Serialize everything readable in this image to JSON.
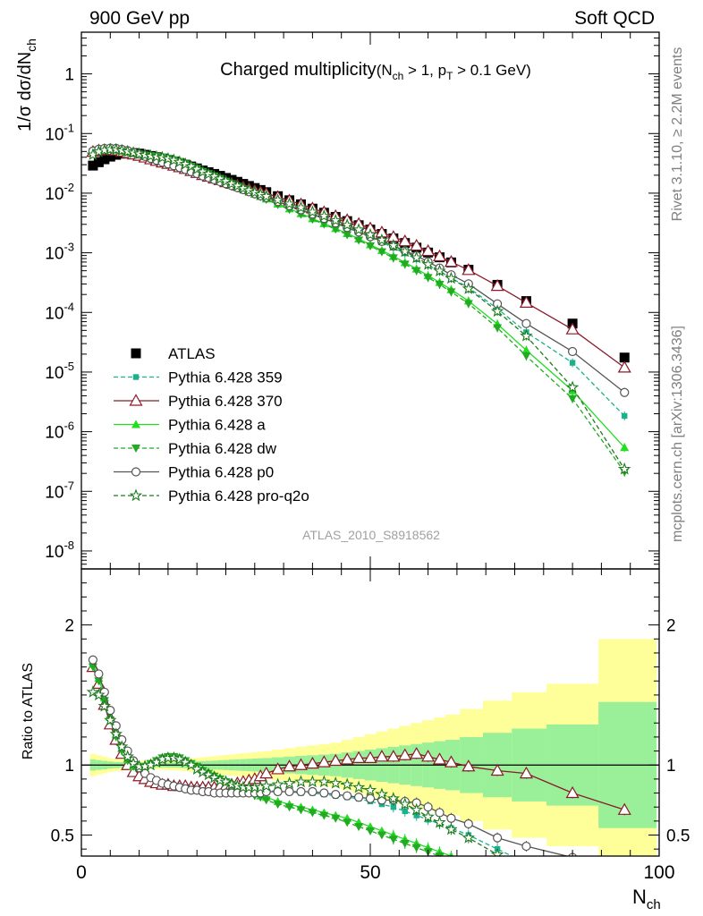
{
  "header": {
    "energy_label": "900 GeV pp",
    "category_label": "Soft QCD",
    "analysis_id": "ATLAS_2010_S8918562",
    "side_rivet": "Rivet 3.1.10, ≥ 2.2M events",
    "side_site": "mcplots.cern.ch [arXiv:1306.3436]"
  },
  "main_title": {
    "main": "Charged multiplicity",
    "cut_pre": "(N",
    "cut_sub1": "ch",
    "cut_mid": " > 1, p",
    "cut_sub2": "T",
    "cut_post": " > 0.1 GeV)"
  },
  "axes": {
    "ylabel_top": "1/σ dσ/dN",
    "ylabel_top_sub": "ch",
    "ylabel_bottom": "Ratio to ATLAS",
    "xlabel": "N",
    "xlabel_sub": "ch"
  },
  "chart_data": [
    {
      "type": "line",
      "name": "distribution",
      "yscale": "log",
      "xlim": [
        0,
        100
      ],
      "ylim": [
        5e-09,
        5
      ],
      "xticks": [
        "0",
        "50",
        "100"
      ],
      "yticks": [
        {
          "base": "10",
          "exp": "-8"
        },
        {
          "base": "10",
          "exp": "-7"
        },
        {
          "base": "10",
          "exp": "-6"
        },
        {
          "base": "10",
          "exp": "-5"
        },
        {
          "base": "10",
          "exp": "-4"
        },
        {
          "base": "10",
          "exp": "-3"
        },
        {
          "base": "10",
          "exp": "-2"
        },
        {
          "base": "10",
          "exp": "-1"
        },
        {
          "base": "1",
          "exp": ""
        }
      ],
      "x": [
        2,
        3,
        4,
        5,
        6,
        7,
        8,
        9,
        10,
        11,
        12,
        13,
        14,
        15,
        16,
        17,
        18,
        19,
        20,
        21,
        22,
        23,
        24,
        25,
        26,
        27,
        28,
        29,
        30,
        31,
        32,
        34,
        36,
        38,
        40,
        42,
        44,
        46,
        48,
        50,
        52,
        54,
        56,
        58,
        60,
        62,
        64,
        67,
        72,
        77,
        85,
        94
      ],
      "legend": [
        "ATLAS",
        "Pythia 6.428 359",
        "Pythia 6.428 370",
        "Pythia 6.428 a",
        "Pythia 6.428 dw",
        "Pythia 6.428 p0",
        "Pythia 6.428 pro-q2o"
      ],
      "data": {
        "name": "ATLAS",
        "color": "#000000",
        "values": [
          0.029,
          0.033,
          0.037,
          0.041,
          0.044,
          0.046,
          0.047,
          0.047,
          0.046,
          0.044,
          0.042,
          0.04,
          0.038,
          0.036,
          0.034,
          0.032,
          0.03,
          0.028,
          0.026,
          0.024,
          0.0225,
          0.021,
          0.0195,
          0.018,
          0.0167,
          0.0155,
          0.0143,
          0.0132,
          0.0122,
          0.0113,
          0.0104,
          0.0089,
          0.0076,
          0.0065,
          0.0055,
          0.0047,
          0.004,
          0.0034,
          0.0029,
          0.00245,
          0.00207,
          0.00174,
          0.00146,
          0.00122,
          0.00101,
          0.00084,
          0.00069,
          0.00052,
          0.00029,
          0.000155,
          6.5e-05,
          1.75e-05
        ]
      },
      "series": [
        {
          "name": "Pythia 6.428 359",
          "color": "#19b28c",
          "marker": "square",
          "dash": true,
          "ratio": [
            1.72,
            1.6,
            1.45,
            1.31,
            1.2,
            1.1,
            1.02,
            0.96,
            0.92,
            0.9,
            0.88,
            0.87,
            0.86,
            0.85,
            0.85,
            0.84,
            0.84,
            0.84,
            0.84,
            0.84,
            0.84,
            0.84,
            0.84,
            0.84,
            0.83,
            0.83,
            0.83,
            0.82,
            0.82,
            0.82,
            0.82,
            0.81,
            0.81,
            0.8,
            0.8,
            0.79,
            0.78,
            0.77,
            0.76,
            0.74,
            0.72,
            0.7,
            0.67,
            0.64,
            0.61,
            0.58,
            0.55,
            0.5,
            0.4,
            0.3,
            0.22,
            0.105
          ]
        },
        {
          "name": "Pythia 6.428 370",
          "color": "#8b1a2a",
          "marker": "triangle-open",
          "dash": false,
          "ratio": [
            1.7,
            1.58,
            1.43,
            1.29,
            1.18,
            1.08,
            1.0,
            0.95,
            0.92,
            0.9,
            0.88,
            0.87,
            0.86,
            0.86,
            0.85,
            0.85,
            0.85,
            0.84,
            0.84,
            0.84,
            0.84,
            0.84,
            0.85,
            0.85,
            0.86,
            0.87,
            0.88,
            0.89,
            0.9,
            0.92,
            0.94,
            0.97,
            0.99,
            1.0,
            1.01,
            1.02,
            1.03,
            1.04,
            1.05,
            1.05,
            1.06,
            1.06,
            1.07,
            1.08,
            1.06,
            1.04,
            1.02,
            0.99,
            0.96,
            0.94,
            0.8,
            0.68
          ]
        },
        {
          "name": "Pythia 6.428 a",
          "color": "#22dd22",
          "marker": "triangle-up",
          "dash": false,
          "ratio": [
            1.72,
            1.62,
            1.48,
            1.34,
            1.22,
            1.12,
            1.04,
            0.99,
            0.98,
            0.99,
            1.01,
            1.03,
            1.05,
            1.06,
            1.06,
            1.05,
            1.03,
            1.01,
            0.99,
            0.97,
            0.95,
            0.93,
            0.91,
            0.89,
            0.87,
            0.85,
            0.83,
            0.81,
            0.8,
            0.78,
            0.77,
            0.74,
            0.72,
            0.7,
            0.68,
            0.66,
            0.64,
            0.62,
            0.59,
            0.56,
            0.53,
            0.5,
            0.47,
            0.44,
            0.41,
            0.38,
            0.35,
            0.3,
            0.22,
            0.15,
            0.075,
            0.031
          ]
        },
        {
          "name": "Pythia 6.428 dw",
          "color": "#22aa22",
          "marker": "triangle-down",
          "dash": true,
          "ratio": [
            1.7,
            1.6,
            1.46,
            1.32,
            1.2,
            1.1,
            1.03,
            0.99,
            0.98,
            0.99,
            1.01,
            1.03,
            1.05,
            1.06,
            1.06,
            1.05,
            1.03,
            1.01,
            0.99,
            0.96,
            0.94,
            0.92,
            0.9,
            0.88,
            0.86,
            0.84,
            0.82,
            0.8,
            0.78,
            0.77,
            0.75,
            0.72,
            0.7,
            0.68,
            0.66,
            0.64,
            0.62,
            0.59,
            0.56,
            0.53,
            0.5,
            0.47,
            0.44,
            0.41,
            0.38,
            0.35,
            0.32,
            0.27,
            0.19,
            0.12,
            0.055,
            0.012
          ]
        },
        {
          "name": "Pythia 6.428 p0",
          "color": "#555555",
          "marker": "circle-open",
          "dash": false,
          "ratio": [
            1.75,
            1.65,
            1.52,
            1.39,
            1.28,
            1.18,
            1.1,
            1.03,
            0.98,
            0.94,
            0.91,
            0.89,
            0.87,
            0.86,
            0.85,
            0.84,
            0.83,
            0.82,
            0.82,
            0.81,
            0.81,
            0.8,
            0.8,
            0.8,
            0.8,
            0.8,
            0.8,
            0.8,
            0.8,
            0.8,
            0.81,
            0.81,
            0.81,
            0.81,
            0.81,
            0.8,
            0.79,
            0.78,
            0.77,
            0.76,
            0.75,
            0.75,
            0.74,
            0.73,
            0.7,
            0.66,
            0.62,
            0.58,
            0.48,
            0.42,
            0.34,
            0.26
          ]
        },
        {
          "name": "Pythia 6.428 pro-q2o",
          "color": "#1f7a1f",
          "marker": "star-open",
          "dash": true,
          "ratio": [
            1.52,
            1.5,
            1.42,
            1.32,
            1.22,
            1.13,
            1.06,
            1.01,
            0.99,
            0.99,
            1.0,
            1.02,
            1.04,
            1.05,
            1.05,
            1.04,
            1.02,
            1.0,
            0.97,
            0.95,
            0.93,
            0.91,
            0.89,
            0.88,
            0.86,
            0.85,
            0.84,
            0.84,
            0.84,
            0.84,
            0.85,
            0.86,
            0.87,
            0.88,
            0.88,
            0.88,
            0.87,
            0.86,
            0.84,
            0.82,
            0.79,
            0.76,
            0.72,
            0.68,
            0.63,
            0.59,
            0.54,
            0.48,
            0.36,
            0.26,
            0.085,
            0.0135
          ]
        }
      ]
    },
    {
      "type": "line",
      "name": "ratio",
      "xlim": [
        0,
        100
      ],
      "ylim": [
        0.35,
        2.4
      ],
      "xticks": [
        "0",
        "50",
        "100"
      ],
      "yticks": [
        "0.5",
        "1",
        "2"
      ],
      "band_edges": [
        1.5,
        2.5,
        3.5,
        4.5,
        5.5,
        6.5,
        7.5,
        8.5,
        9.5,
        10.5,
        11.5,
        12.5,
        13.5,
        14.5,
        15.5,
        16.5,
        17.5,
        18.5,
        19.5,
        20.5,
        21.5,
        22.5,
        23.5,
        24.5,
        25.5,
        26.5,
        27.5,
        28.5,
        29.5,
        30.5,
        31.5,
        33,
        35,
        37,
        39,
        41,
        43,
        45,
        47,
        49,
        51,
        53,
        55,
        57,
        59,
        61,
        63,
        65.5,
        69.5,
        74.5,
        80.5,
        89.5,
        99.5
      ],
      "band_inner": [
        0.04,
        0.035,
        0.03,
        0.025,
        0.022,
        0.02,
        0.018,
        0.016,
        0.015,
        0.015,
        0.015,
        0.016,
        0.017,
        0.018,
        0.019,
        0.02,
        0.022,
        0.024,
        0.026,
        0.028,
        0.03,
        0.032,
        0.034,
        0.036,
        0.038,
        0.04,
        0.042,
        0.044,
        0.046,
        0.048,
        0.05,
        0.055,
        0.06,
        0.065,
        0.07,
        0.075,
        0.08,
        0.09,
        0.1,
        0.11,
        0.12,
        0.13,
        0.14,
        0.15,
        0.16,
        0.17,
        0.18,
        0.2,
        0.23,
        0.26,
        0.29,
        0.45
      ],
      "band_outer": [
        0.08,
        0.07,
        0.06,
        0.05,
        0.044,
        0.04,
        0.036,
        0.032,
        0.03,
        0.03,
        0.03,
        0.032,
        0.034,
        0.036,
        0.038,
        0.04,
        0.044,
        0.048,
        0.052,
        0.056,
        0.06,
        0.064,
        0.068,
        0.072,
        0.076,
        0.08,
        0.084,
        0.088,
        0.092,
        0.096,
        0.1,
        0.11,
        0.12,
        0.13,
        0.14,
        0.15,
        0.16,
        0.18,
        0.2,
        0.22,
        0.24,
        0.26,
        0.28,
        0.3,
        0.32,
        0.34,
        0.36,
        0.4,
        0.46,
        0.52,
        0.58,
        0.9
      ]
    }
  ]
}
